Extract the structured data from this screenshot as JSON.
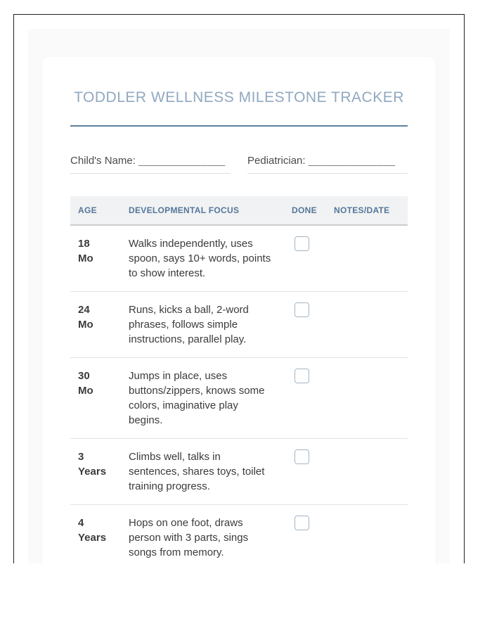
{
  "page": {
    "title": "TODDLER WELLNESS MILESTONE TRACKER"
  },
  "fields": {
    "child_name": {
      "label": "Child's Name:",
      "blank": "______________"
    },
    "pediatrician": {
      "label": "Pediatrician:",
      "blank": "______________"
    }
  },
  "table": {
    "headers": {
      "age": "AGE",
      "focus": "DEVELOPMENTAL FOCUS",
      "done": "DONE",
      "notes": "NOTES/DATE"
    },
    "rows": [
      {
        "age_line1": "18",
        "age_line2": "Mo",
        "focus": "Walks independently, uses spoon, says 10+ words, points to show interest.",
        "done": false,
        "notes": ""
      },
      {
        "age_line1": "24",
        "age_line2": "Mo",
        "focus": "Runs, kicks a ball, 2-word phrases, follows simple instructions, parallel play.",
        "done": false,
        "notes": ""
      },
      {
        "age_line1": "30",
        "age_line2": "Mo",
        "focus": "Jumps in place, uses buttons/zippers, knows some colors, imaginative play begins.",
        "done": false,
        "notes": ""
      },
      {
        "age_line1": "3",
        "age_line2": "Years",
        "focus": "Climbs well, talks in sentences, shares toys, toilet training progress.",
        "done": false,
        "notes": ""
      },
      {
        "age_line1": "4",
        "age_line2": "Years",
        "focus": "Hops on one foot, draws person with 3 parts, sings songs from memory.",
        "done": false,
        "notes": ""
      }
    ]
  },
  "colors": {
    "title_text": "#91a8c0",
    "title_rule": "#5c819e",
    "header_text": "#54779b",
    "header_bg": "#f1f2f3",
    "checkbox_border": "#a3b5c4",
    "frame_border": "#1f1f1f",
    "body_text": "#3b3b3b"
  }
}
